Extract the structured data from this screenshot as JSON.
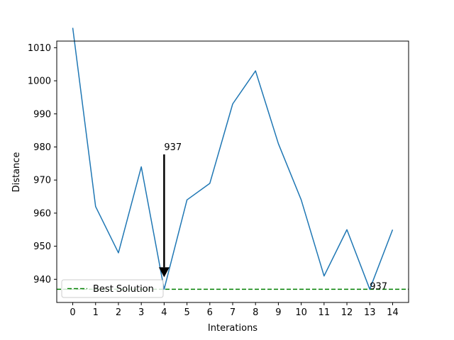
{
  "chart_data": {
    "type": "line",
    "title": "",
    "xlabel": "Interations",
    "ylabel": "Distance",
    "xlim": [
      -0.7,
      14.7
    ],
    "ylim": [
      933,
      1012
    ],
    "x_ticks": [
      0,
      1,
      2,
      3,
      4,
      5,
      6,
      7,
      8,
      9,
      10,
      11,
      12,
      13,
      14
    ],
    "x_tick_labels": [
      "0",
      "1",
      "2",
      "3",
      "4",
      "5",
      "6",
      "7",
      "8",
      "9",
      "10",
      "11",
      "12",
      "13",
      "14"
    ],
    "y_ticks": [
      940,
      950,
      960,
      970,
      980,
      990,
      1000,
      1010
    ],
    "y_tick_labels": [
      "940",
      "950",
      "960",
      "970",
      "980",
      "990",
      "1000",
      "1010"
    ],
    "grid": false,
    "series": [
      {
        "x": [
          0,
          1,
          2,
          3,
          4,
          5,
          6,
          7,
          8,
          9,
          10,
          11,
          12,
          13,
          14
        ],
        "values": [
          1016,
          962,
          948,
          974,
          937,
          964,
          969,
          993,
          1003,
          981,
          964,
          941,
          955,
          937,
          955
        ],
        "color": "#1f77b4"
      }
    ],
    "reference_line": {
      "name": "Best Solution",
      "y": 937,
      "color": "#008000",
      "style": "dashed"
    },
    "annotations": [
      {
        "text": "937",
        "x": 4,
        "y": 937,
        "arrow": true,
        "arrow_color": "#000000"
      },
      {
        "text": "937",
        "x": 13,
        "y": 937,
        "arrow": false
      }
    ],
    "legend": {
      "position": "bottom-left",
      "entries": [
        "Best Solution"
      ]
    }
  }
}
